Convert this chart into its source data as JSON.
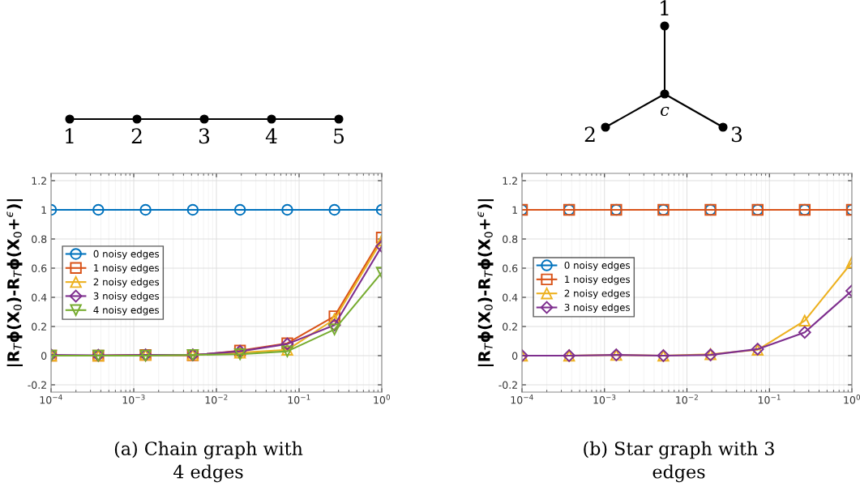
{
  "chart_data": [
    {
      "type": "line",
      "ylabel": "|R$_{T}$ϕ(X$_{0}$)-R$_{T}$ϕ(X$_{0}$+$^{ϵ}$)|",
      "x": [
        0.0001,
        0.000373,
        0.00139,
        0.00518,
        0.0193,
        0.072,
        0.268,
        1
      ],
      "series": [
        {
          "name": "0 noisy edges",
          "color": "#0072bd",
          "marker": "circle",
          "values": [
            1,
            1,
            1,
            1,
            1,
            1,
            1,
            1
          ]
        },
        {
          "name": "1 noisy edges",
          "color": "#d95319",
          "marker": "square",
          "values": [
            0,
            0,
            0.005,
            0.002,
            0.035,
            0.085,
            0.27,
            0.81
          ]
        },
        {
          "name": "2 noisy edges",
          "color": "#edb120",
          "marker": "triangle",
          "values": [
            0,
            0,
            0.005,
            0.005,
            0.02,
            0.04,
            0.25,
            0.79
          ]
        },
        {
          "name": "3 noisy edges",
          "color": "#7e2f8e",
          "marker": "diamond",
          "values": [
            0.005,
            0.003,
            0.005,
            0.005,
            0.03,
            0.08,
            0.21,
            0.75
          ]
        },
        {
          "name": "4 noisy edges",
          "color": "#77ac30",
          "marker": "triangle_down",
          "values": [
            0,
            0,
            0,
            0.005,
            0.01,
            0.03,
            0.18,
            0.57
          ]
        }
      ],
      "log": "x",
      "xlim": [
        0.0001,
        1
      ],
      "xticks": [
        {
          "value": 0.0001,
          "label": "10$^{−4}$"
        },
        {
          "value": 0.001,
          "label": "10$^{−3}$"
        },
        {
          "value": 0.01,
          "label": "10$^{−2}$"
        },
        {
          "value": 0.1,
          "label": "10$^{−1}$"
        },
        {
          "value": 1,
          "label": "10$^{0}$"
        }
      ],
      "ylim": [
        -0.25,
        1.25
      ],
      "yticks": [
        -0.2,
        0,
        0.2,
        0.4,
        0.6,
        0.8,
        1,
        1.2
      ],
      "grid": true,
      "legend": "left",
      "line_style": "solid",
      "annotations": [
        "(a) Chain graph with\n4 edges",
        "1",
        "2",
        "3",
        "4",
        "5"
      ]
    },
    {
      "type": "line",
      "ylabel": "|R$_{T}$ϕ(X$_{0}$)-R$_{T}$ϕ(X$_{0}$+$^{ϵ}$)|",
      "x": [
        0.0001,
        0.000373,
        0.00139,
        0.00518,
        0.0193,
        0.072,
        0.268,
        1
      ],
      "series": [
        {
          "name": "0 noisy edges",
          "color": "#0072bd",
          "marker": "circle",
          "values": [
            1,
            1,
            1,
            1,
            1,
            1,
            1,
            1
          ]
        },
        {
          "name": "1 noisy edges",
          "color": "#d95319",
          "marker": "square",
          "values": [
            1,
            1,
            1,
            1,
            1,
            1,
            1,
            1
          ]
        },
        {
          "name": "2 noisy edges",
          "color": "#edb120",
          "marker": "triangle",
          "values": [
            0,
            0,
            0.005,
            0,
            0.01,
            0.04,
            0.24,
            0.64
          ]
        },
        {
          "name": "3 noisy edges",
          "color": "#7e2f8e",
          "marker": "diamond",
          "values": [
            0,
            0,
            0.005,
            0,
            0.005,
            0.045,
            0.16,
            0.445
          ]
        }
      ],
      "log": "x",
      "xlim": [
        0.0001,
        1
      ],
      "xticks": [
        {
          "value": 0.0001,
          "label": "10$^{−4}$"
        },
        {
          "value": 0.001,
          "label": "10$^{−3}$"
        },
        {
          "value": 0.01,
          "label": "10$^{−2}$"
        },
        {
          "value": 0.1,
          "label": "10$^{−1}$"
        },
        {
          "value": 1,
          "label": "10$^{0}$"
        }
      ],
      "ylim": [
        -0.25,
        1.25
      ],
      "yticks": [
        -0.2,
        0,
        0.2,
        0.4,
        0.6,
        0.8,
        1,
        1.2
      ],
      "grid": true,
      "legend": "left",
      "line_style": "solid",
      "annotations": [
        "(b) Star graph with 3\nedges",
        "1",
        "2",
        "3",
        "c"
      ]
    }
  ]
}
